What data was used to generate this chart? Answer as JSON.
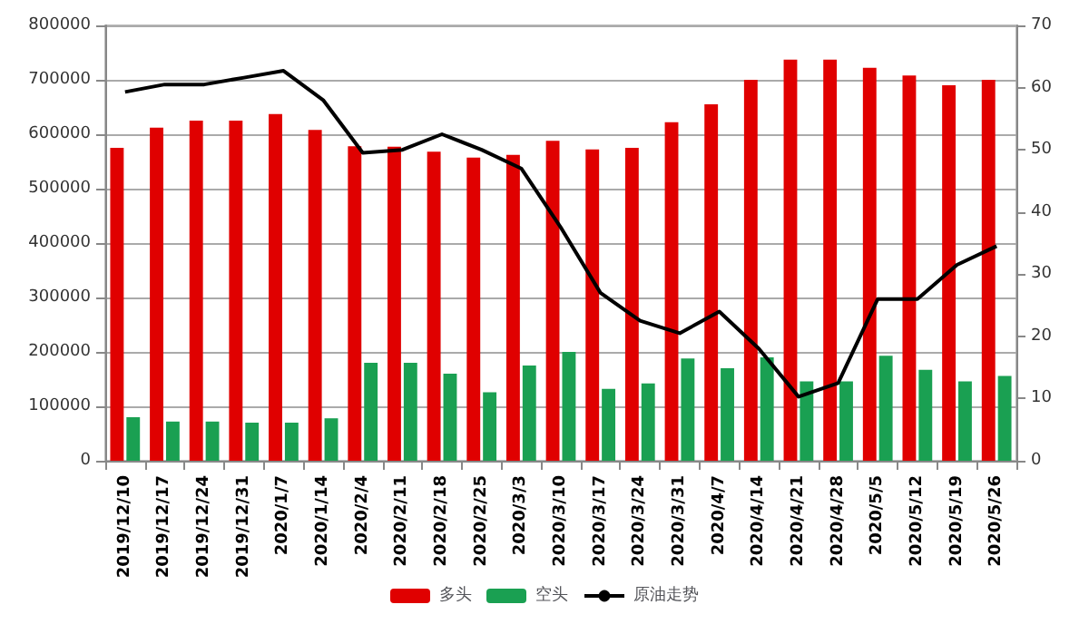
{
  "chart_data": {
    "type": "bar",
    "categories": [
      "2019/12/10",
      "2019/12/17",
      "2019/12/24",
      "2019/12/31",
      "2020/1/7",
      "2020/1/14",
      "2020/2/4",
      "2020/2/11",
      "2020/2/18",
      "2020/2/25",
      "2020/3/3",
      "2020/3/10",
      "2020/3/17",
      "2020/3/24",
      "2020/3/31",
      "2020/4/7",
      "2020/4/14",
      "2020/4/21",
      "2020/4/28",
      "2020/5/5",
      "2020/5/12",
      "2020/5/19",
      "2020/5/26"
    ],
    "series": [
      {
        "name": "多头",
        "color": "#e00000",
        "values": [
          575000,
          612000,
          625000,
          625000,
          637000,
          608000,
          578000,
          577000,
          568000,
          557000,
          562000,
          588000,
          572000,
          575000,
          622000,
          655000,
          700000,
          737000,
          737000,
          722000,
          708000,
          690000,
          700000
        ]
      },
      {
        "name": "空头",
        "color": "#1aa052",
        "values": [
          80000,
          72000,
          72000,
          70000,
          70000,
          78000,
          180000,
          180000,
          160000,
          126000,
          175000,
          200000,
          132000,
          142000,
          188000,
          170000,
          190000,
          146000,
          146000,
          193000,
          167000,
          146000,
          156000
        ]
      },
      {
        "name": "原油走势",
        "type": "line",
        "axis": "y2",
        "color": "#000000",
        "values": [
          59.3,
          60.5,
          60.5,
          61.6,
          62.7,
          58,
          49.5,
          50,
          52.5,
          50,
          47,
          37.5,
          27,
          22.5,
          20.5,
          24,
          18,
          10.3,
          12.5,
          26,
          26,
          31.5,
          34.5
        ]
      }
    ],
    "ylim": [
      0,
      800000
    ],
    "yticks": [
      0,
      100000,
      200000,
      300000,
      400000,
      500000,
      600000,
      700000,
      800000
    ],
    "y2lim": [
      0,
      70
    ],
    "y2ticks": [
      0,
      10,
      20,
      30,
      40,
      50,
      60,
      70
    ],
    "grid": "y",
    "legend": "bottom",
    "marker": "none"
  }
}
